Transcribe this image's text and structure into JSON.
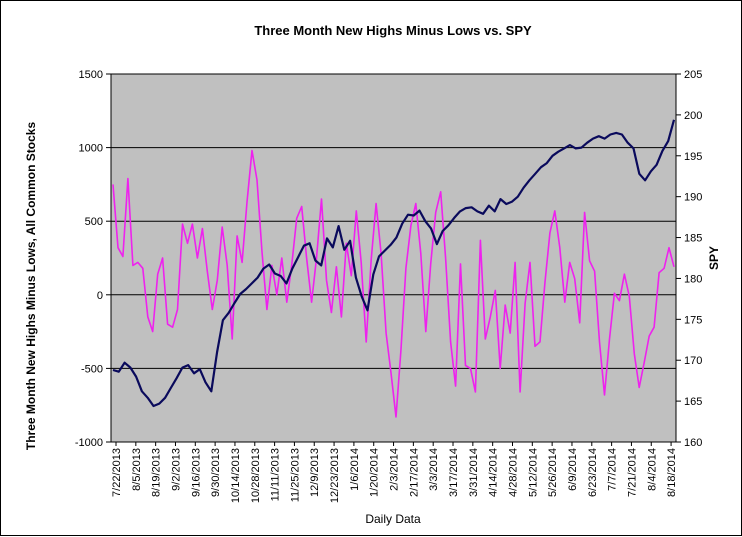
{
  "chart_data": {
    "type": "line",
    "title": "Three Month New Highs Minus Lows vs. SPY",
    "xlabel": "Daily Data",
    "ylabel_left": "Three Month New Highs Minus Lows, All Common Stocks",
    "ylabel_right": "SPY",
    "y_left_range": [
      -1000,
      1500
    ],
    "y_left_ticks": [
      -1000,
      -500,
      0,
      500,
      1000,
      1500
    ],
    "y_right_range": [
      160,
      205
    ],
    "y_right_ticks": [
      160,
      165,
      170,
      175,
      180,
      185,
      190,
      195,
      200,
      205
    ],
    "grid": "horizontal",
    "x_ticks": [
      "7/22/2013",
      "8/5/2013",
      "8/19/2013",
      "9/2/2013",
      "9/16/2013",
      "9/30/2013",
      "10/14/2013",
      "10/28/2013",
      "11/11/2013",
      "11/25/2013",
      "12/9/2013",
      "12/23/2013",
      "1/6/2014",
      "1/20/2014",
      "2/3/2014",
      "2/17/2014",
      "3/3/2014",
      "3/17/2014",
      "3/31/2014",
      "4/14/2014",
      "4/28/2014",
      "5/12/2014",
      "5/26/2014",
      "6/9/2014",
      "6/23/2014",
      "7/7/2014",
      "7/21/2014",
      "8/4/2014",
      "8/18/2014"
    ],
    "colors": {
      "plot_bg": "#c0c0c0",
      "highs_lows": "#ee22ee",
      "spy": "#0a0a5c"
    },
    "series": [
      {
        "axis": "left",
        "color": "#ee22ee",
        "values": [
          750,
          320,
          260,
          790,
          200,
          220,
          180,
          -150,
          -250,
          140,
          250,
          -200,
          -220,
          -100,
          480,
          350,
          480,
          250,
          450,
          160,
          -100,
          100,
          460,
          200,
          -300,
          400,
          220,
          630,
          980,
          780,
          300,
          -100,
          200,
          0,
          250,
          -50,
          200,
          520,
          600,
          250,
          -50,
          250,
          650,
          100,
          -120,
          190,
          -150,
          350,
          130,
          570,
          220,
          -320,
          240,
          620,
          280,
          -260,
          -530,
          -830,
          -380,
          180,
          470,
          620,
          280,
          -250,
          210,
          560,
          700,
          250,
          -320,
          -620,
          210,
          -480,
          -500,
          -660,
          370,
          -300,
          -150,
          30,
          -500,
          -70,
          -260,
          220,
          -660,
          -60,
          220,
          -350,
          -320,
          80,
          420,
          570,
          320,
          -50,
          220,
          110,
          -190,
          560,
          230,
          160,
          -320,
          -680,
          -300,
          10,
          -40,
          140,
          -10,
          -400,
          -630,
          -460,
          -280,
          -220,
          150,
          180,
          320,
          190
        ]
      },
      {
        "axis": "right",
        "color": "#0a0a5c",
        "values": [
          168.8,
          168.6,
          169.7,
          169.1,
          168.0,
          166.2,
          165.4,
          164.4,
          164.7,
          165.4,
          166.6,
          167.8,
          169.1,
          169.4,
          168.4,
          168.9,
          167.3,
          166.2,
          171.0,
          174.9,
          175.8,
          177.0,
          178.1,
          178.7,
          179.4,
          180.1,
          181.2,
          181.7,
          180.6,
          180.3,
          179.4,
          181.2,
          182.6,
          184.0,
          184.3,
          182.2,
          181.6,
          184.9,
          183.8,
          186.4,
          183.5,
          184.6,
          180.1,
          177.8,
          176.1,
          180.5,
          182.7,
          183.4,
          184.1,
          185.0,
          186.7,
          187.8,
          187.7,
          188.3,
          187.0,
          186.1,
          184.2,
          185.8,
          186.5,
          187.4,
          188.2,
          188.6,
          188.7,
          188.2,
          187.9,
          188.9,
          188.2,
          189.7,
          189.1,
          189.4,
          190.0,
          191.1,
          192.0,
          192.8,
          193.6,
          194.1,
          195.0,
          195.5,
          195.9,
          196.3,
          195.9,
          196.0,
          196.6,
          197.1,
          197.4,
          197.1,
          197.6,
          197.8,
          197.6,
          196.6,
          195.9,
          192.8,
          192.0,
          193.1,
          193.9,
          195.6,
          196.8,
          199.4
        ]
      }
    ]
  }
}
